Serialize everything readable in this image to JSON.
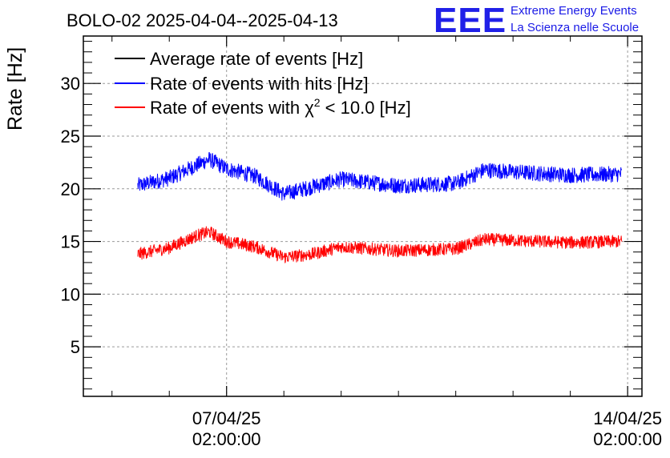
{
  "chart_data": {
    "type": "line",
    "title": "BOLO-02 2025-04-04--2025-04-13",
    "ylabel": "Rate [Hz]",
    "xlabel": "",
    "ylim": [
      0.3,
      34.5
    ],
    "xlim_days": [
      -2.5,
      7.25
    ],
    "yticks": [
      5,
      10,
      15,
      20,
      25,
      30
    ],
    "y_tick_labels": [
      "5",
      "10",
      "15",
      "20",
      "25",
      "30"
    ],
    "x_ticks": [
      {
        "day": 0,
        "date": "07/04/25",
        "time": "02:00:00"
      },
      {
        "day": 7,
        "date": "14/04/25",
        "time": "02:00:00"
      }
    ],
    "grid": true,
    "legend_position": "top-left",
    "legend": {
      "avg": "Average rate of events [Hz]",
      "hits": "Rate of events with hits [Hz]",
      "chi_pre": "Rate of events with χ",
      "chi_sup": "2",
      "chi_post": " < 10.0 [Hz]"
    },
    "series": [
      {
        "name": "Average rate of events [Hz]",
        "color": "#000000",
        "x": [],
        "values": []
      },
      {
        "name": "Rate of events with hits [Hz]",
        "color": "#0000ff",
        "x": [
          -1.55,
          -1.0,
          -0.5,
          -0.3,
          0.0,
          0.5,
          1.0,
          1.5,
          2.0,
          3.0,
          4.0,
          4.5,
          5.0,
          6.0,
          6.9
        ],
        "values": [
          20.3,
          21.0,
          22.3,
          22.8,
          21.9,
          21.2,
          19.5,
          20.2,
          20.9,
          20.3,
          20.5,
          21.8,
          21.6,
          21.3,
          21.4
        ],
        "noise": 0.75
      },
      {
        "name": "Rate of events with χ² < 10.0 [Hz]",
        "color": "#ff0000",
        "x": [
          -1.55,
          -1.0,
          -0.5,
          -0.3,
          0.0,
          0.5,
          1.0,
          1.5,
          2.0,
          3.0,
          4.0,
          4.5,
          5.0,
          6.0,
          6.9
        ],
        "values": [
          13.8,
          14.4,
          15.6,
          15.9,
          15.0,
          14.5,
          13.5,
          13.8,
          14.5,
          14.1,
          14.3,
          15.2,
          15.1,
          14.9,
          15.0
        ],
        "noise": 0.6
      }
    ]
  },
  "logo": {
    "letters": "EEE",
    "line1": "Extreme Energy Events",
    "line2": "La Scienza nelle Scuole"
  }
}
